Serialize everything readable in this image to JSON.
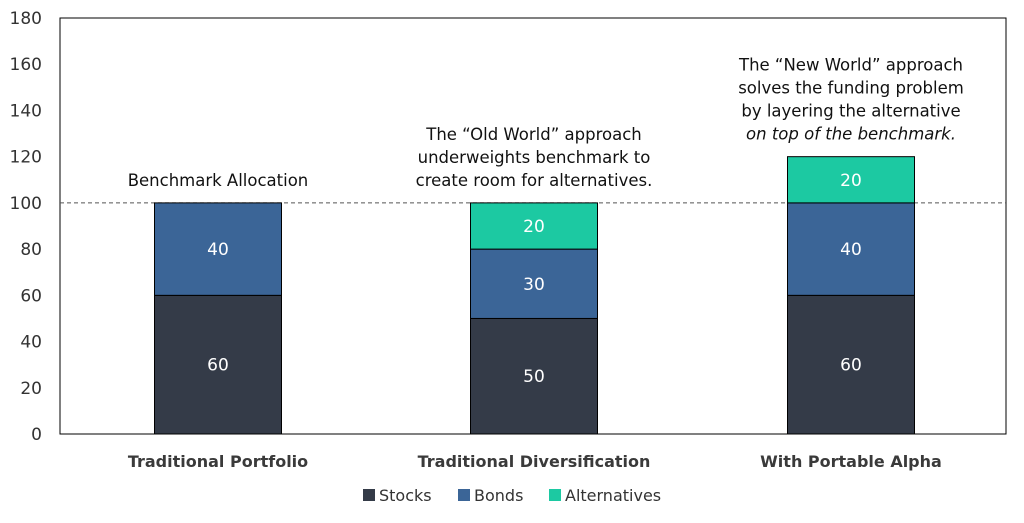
{
  "chart_data": {
    "type": "bar",
    "stacked": true,
    "categories": [
      "Traditional Portfolio",
      "Traditional Diversification",
      "With Portable Alpha"
    ],
    "series": [
      {
        "name": "Stocks",
        "values": [
          60,
          50,
          60
        ],
        "color": "#343b48"
      },
      {
        "name": "Bonds",
        "values": [
          40,
          30,
          40
        ],
        "color": "#3b6597"
      },
      {
        "name": "Alternatives",
        "values": [
          0,
          20,
          20
        ],
        "color": "#1cc9a2"
      }
    ],
    "ylim": [
      0,
      180
    ],
    "yticks": [
      "0",
      "20",
      "40",
      "60",
      "80",
      "100",
      "120",
      "140",
      "160",
      "180"
    ],
    "reference_line": {
      "value": 100,
      "style": "dashed"
    },
    "annotations": [
      {
        "category": 0,
        "lines": [
          {
            "text": "Benchmark Allocation",
            "italic": false
          }
        ]
      },
      {
        "category": 1,
        "lines": [
          {
            "text": "The “Old World” approach",
            "italic": false
          },
          {
            "text": "underweights benchmark to",
            "italic": false
          },
          {
            "text": "create room for alternatives.",
            "italic": false
          }
        ]
      },
      {
        "category": 2,
        "lines": [
          {
            "text": "The “New World” approach",
            "italic": false
          },
          {
            "text": "solves the funding problem",
            "italic": false
          },
          {
            "text": "by layering the alternative",
            "italic": false
          },
          {
            "text": "on top of the benchmark.",
            "italic": true
          }
        ]
      }
    ],
    "legend": {
      "position": "bottom-center",
      "entries": [
        "Stocks",
        "Bonds",
        "Alternatives"
      ]
    },
    "grid": false
  }
}
